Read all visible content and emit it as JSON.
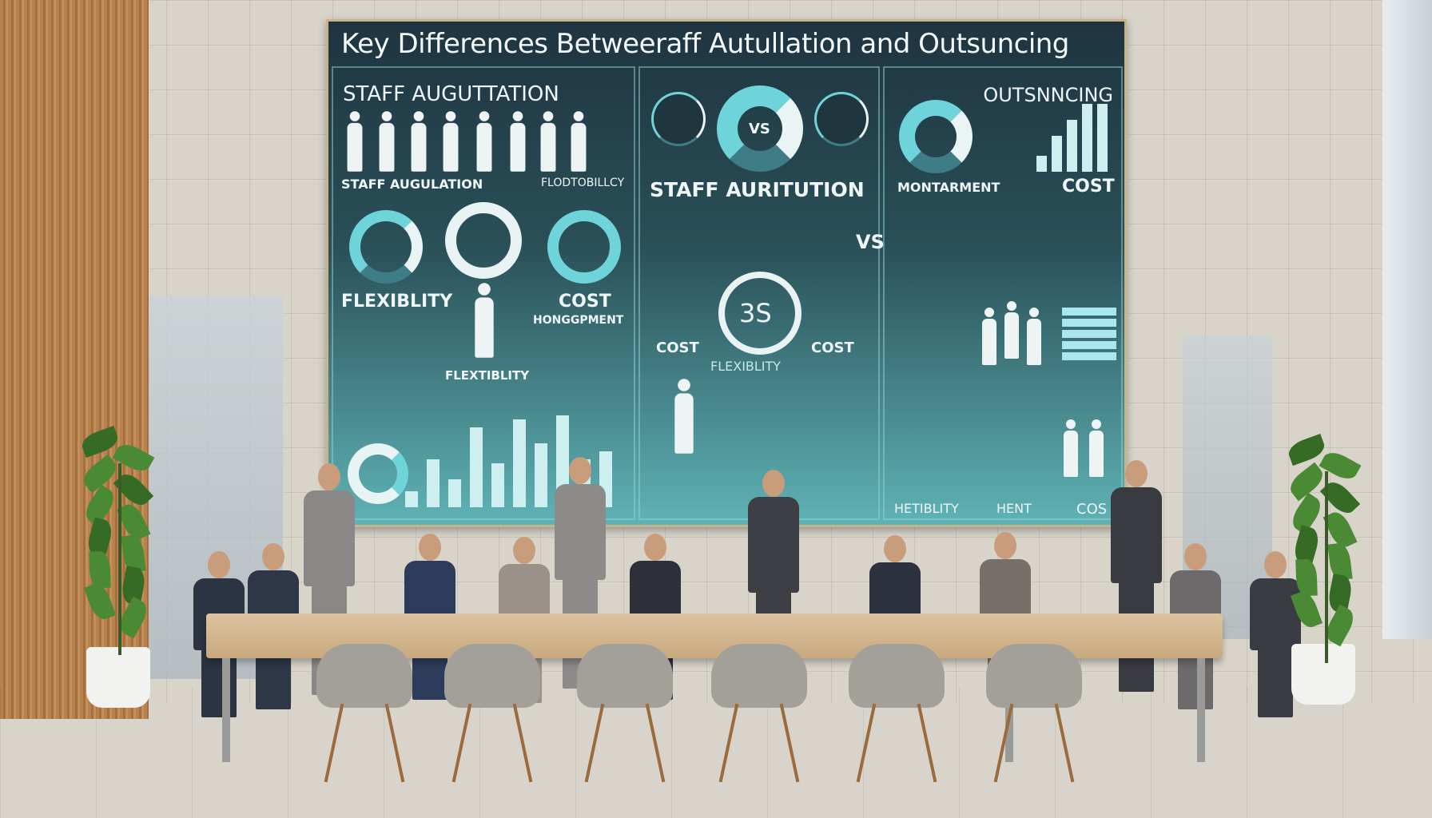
{
  "screen": {
    "title": "Key Differences Betweeraff Autullation and Outsuncing",
    "left_panel": {
      "heading": "STAFF AUGUTTATION",
      "sub_left": "STAFF AUGULATION",
      "sub_right": "FLODTOBILLCY",
      "flexibility": "FLEXIBLITY",
      "cost": "COST",
      "cost_sub": "HONGGPMENT",
      "bottom": "FLEXTIBLITY"
    },
    "middle_panel": {
      "vs_top": "VS",
      "heading": "STAFF AURITUTION",
      "vs_side": "VS",
      "center_badge": "3S",
      "cost_left": "COST",
      "cost_right": "COST",
      "flexibility": "FLEXIBLITY"
    },
    "right_panel": {
      "heading": "OUTSNNCING",
      "management": "MONTARMENT",
      "cost": "COST",
      "bottom_left": "HETIBLITY",
      "bottom_mid": "HENT",
      "bottom_right": "COS"
    },
    "colors": {
      "accent": "#6fd4da",
      "screen_dark": "#1f3440",
      "wood": "#b8824e"
    }
  }
}
